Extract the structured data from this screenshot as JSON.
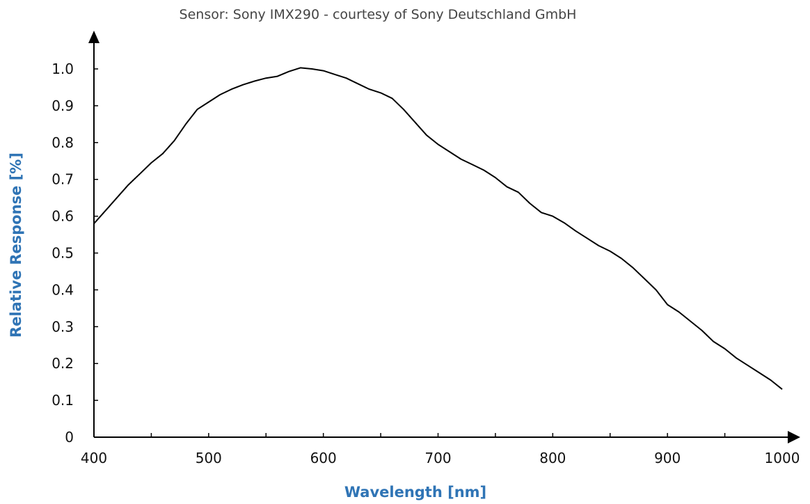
{
  "colors": {
    "axis_label": "#2f74b5",
    "line": "#000000",
    "axis": "#000000",
    "title": "#444444"
  },
  "chart_data": {
    "type": "line",
    "title": "Sensor: Sony IMX290 - courtesy of Sony Deutschland GmbH",
    "xlabel": "Wavelength [nm]",
    "ylabel": "Relative Response [%]",
    "xlim": [
      400,
      1000
    ],
    "ylim": [
      0,
      1.0
    ],
    "x_tick_labels": [
      "400",
      "500",
      "600",
      "700",
      "800",
      "900",
      "1000"
    ],
    "y_tick_labels": [
      "0",
      "0.1",
      "0.2",
      "0.3",
      "0.4",
      "0.5",
      "0.6",
      "0.7",
      "0.8",
      "0.9",
      "1.0"
    ],
    "grid": false,
    "series": [
      {
        "x": [
          400,
          410,
          420,
          430,
          440,
          450,
          460,
          470,
          480,
          490,
          500,
          510,
          520,
          530,
          540,
          550,
          560,
          570,
          580,
          590,
          600,
          610,
          620,
          630,
          640,
          650,
          660,
          670,
          680,
          690,
          700,
          710,
          720,
          730,
          740,
          750,
          760,
          770,
          780,
          790,
          800,
          810,
          820,
          830,
          840,
          850,
          860,
          870,
          880,
          890,
          900,
          910,
          920,
          930,
          940,
          950,
          960,
          970,
          980,
          990,
          1000
        ],
        "y": [
          0.58,
          0.615,
          0.65,
          0.685,
          0.715,
          0.745,
          0.77,
          0.805,
          0.85,
          0.89,
          0.91,
          0.93,
          0.945,
          0.957,
          0.967,
          0.975,
          0.98,
          0.993,
          1.003,
          1.0,
          0.995,
          0.985,
          0.975,
          0.96,
          0.945,
          0.935,
          0.92,
          0.89,
          0.855,
          0.82,
          0.795,
          0.775,
          0.755,
          0.74,
          0.725,
          0.705,
          0.68,
          0.665,
          0.635,
          0.61,
          0.6,
          0.582,
          0.56,
          0.54,
          0.52,
          0.505,
          0.485,
          0.46,
          0.43,
          0.4,
          0.36,
          0.34,
          0.315,
          0.29,
          0.26,
          0.24,
          0.215,
          0.195,
          0.175,
          0.155,
          0.13
        ]
      }
    ]
  }
}
